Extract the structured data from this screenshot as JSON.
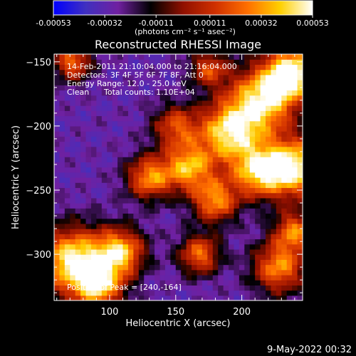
{
  "chart_data": {
    "type": "heatmap",
    "title": "Reconstructed RHESSI Image",
    "xlabel": "Heliocentric X (arcsec)",
    "ylabel": "Heliocentric Y (arcsec)",
    "xlim": [
      58,
      246
    ],
    "ylim": [
      -336,
      -144
    ],
    "xticks": [
      100,
      150,
      200
    ],
    "yticks": [
      -150,
      -200,
      -250,
      -300
    ],
    "colorbar": {
      "min": -0.00053,
      "max": 0.00053,
      "ticks": [
        "-0.00053",
        "-0.00032",
        "-0.00011",
        "0.00011",
        "0.00032",
        "0.00053"
      ],
      "tick_values": [
        -0.00053,
        -0.00032,
        -0.00011,
        0.00011,
        0.00032,
        0.00053
      ],
      "units": "(photons cm⁻² s⁻¹ asec⁻²)"
    },
    "annotations": {
      "time": "14-Feb-2011 21:10:04.000 to 21:16:04.000",
      "detectors": "Detectors: 3F 4F 5F 6F 7F 8F, Att 0",
      "energy": "Energy Range: 12.0 - 25.0 keV",
      "algorithm": "Clean",
      "counts": "Total counts: 1.10E+04",
      "peak": "Position of Peak = [240,-164]"
    },
    "peak": [
      240,
      -164
    ],
    "sources": [
      {
        "x": 238,
        "y": -158,
        "amp": 1.0,
        "sigma": 14
      },
      {
        "x": 215,
        "y": -180,
        "amp": 0.85,
        "sigma": 18
      },
      {
        "x": 190,
        "y": -205,
        "amp": 0.8,
        "sigma": 16
      },
      {
        "x": 240,
        "y": -232,
        "amp": 0.95,
        "sigma": 16
      },
      {
        "x": 212,
        "y": -235,
        "amp": 0.7,
        "sigma": 14
      },
      {
        "x": 160,
        "y": -232,
        "amp": 0.65,
        "sigma": 13
      },
      {
        "x": 130,
        "y": -240,
        "amp": 0.55,
        "sigma": 12
      },
      {
        "x": 180,
        "y": -258,
        "amp": 0.55,
        "sigma": 12
      },
      {
        "x": 72,
        "y": -305,
        "amp": 0.95,
        "sigma": 18
      },
      {
        "x": 108,
        "y": -298,
        "amp": 0.7,
        "sigma": 13
      },
      {
        "x": 92,
        "y": -325,
        "amp": 0.6,
        "sigma": 13
      },
      {
        "x": 168,
        "y": -300,
        "amp": 0.45,
        "sigma": 11
      },
      {
        "x": 228,
        "y": -310,
        "amp": 0.55,
        "sigma": 14
      },
      {
        "x": 240,
        "y": -282,
        "amp": 0.45,
        "sigma": 11
      },
      {
        "x": 72,
        "y": -150,
        "amp": 0.45,
        "sigma": 10
      },
      {
        "x": 175,
        "y": -155,
        "amp": 0.3,
        "sigma": 10
      },
      {
        "x": 150,
        "y": -200,
        "amp": 0.3,
        "sigma": 12
      }
    ],
    "background_level": -0.55,
    "colors": {
      "colorbar_stops": [
        "#0000ff",
        "#4030c0",
        "#7020a0",
        "#000000",
        "#901000",
        "#d03000",
        "#ff7000",
        "#ffd000",
        "#ffffff"
      ]
    }
  },
  "footer": {
    "date": "9-May-2022 00:32"
  }
}
